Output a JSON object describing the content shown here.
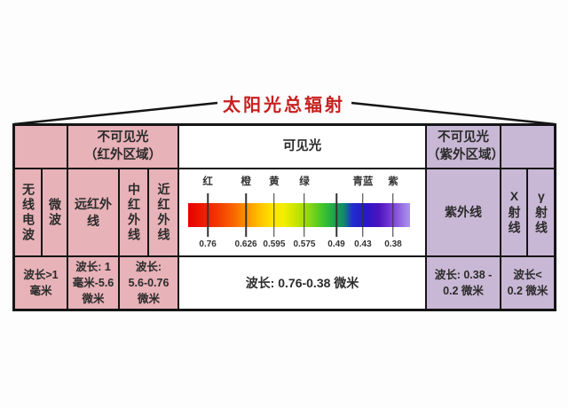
{
  "title": "太阳光总辐射",
  "palette": {
    "pink": "#e7b2b8",
    "purple": "#c9b8d5",
    "white": "#ffffff",
    "title_red": "#c6201f",
    "grid_line": "#151515",
    "text": "#2b2b2b"
  },
  "table": {
    "headers": {
      "infrared": "不可见光\n（红外区域）",
      "visible": "可见光",
      "ultraviolet": "不可见光\n（紫外区域）"
    },
    "bands": {
      "radio": "无线电波",
      "microwave": "微波",
      "far_infrared": "远红外\n线",
      "mid_infrared": "中红外线",
      "near_infrared": "近红外线",
      "ultraviolet": "紫外线",
      "xray": "X射线",
      "gamma": "γ射线"
    },
    "wavelengths": {
      "radio_microwave": "波长>1\n毫米",
      "far_infrared": "波长: 1\n毫米-5.6\n微米",
      "mid_near_infrared": "波长:\n5.6-0.76\n微米",
      "visible": "波长: 0.76-0.38 微米",
      "ultraviolet": "波长: 0.38 -\n0.2 微米",
      "xray_gamma": "波长<\n0.2 微米"
    }
  },
  "spectrum": {
    "unit": "微米",
    "ticks": [
      {
        "label": "红",
        "value": "0.76",
        "pos": 11.6
      },
      {
        "label": "橙",
        "value": "0.626",
        "pos": 27.1
      },
      {
        "label": "黄",
        "value": "0.595",
        "pos": 38.6
      },
      {
        "label": "绿",
        "value": "0.575",
        "pos": 50.9
      },
      {
        "label": "",
        "value": "0.49",
        "pos": 63.9
      },
      {
        "label": "青蓝",
        "value": "0.43",
        "pos": 74.7
      },
      {
        "label": "紫",
        "value": "0.38",
        "pos": 87.0
      }
    ],
    "gradient": [
      "#e60000 0%",
      "#ee1c00 7%",
      "#f23d00 14%",
      "#f86a00 21%",
      "#fe9900 27%",
      "#ffc000 32%",
      "#ffe400 38%",
      "#f4ee00 43%",
      "#c3e400 49%",
      "#86d714 55%",
      "#3cc32e 61%",
      "#1ca34d 66%",
      "#108c68 70%",
      "#1f2ecf 74%",
      "#2817c6 80%",
      "#4d14c0 86%",
      "#7c3fd8 92%",
      "#a183e8 98%",
      "#ab93ea 100%"
    ]
  }
}
